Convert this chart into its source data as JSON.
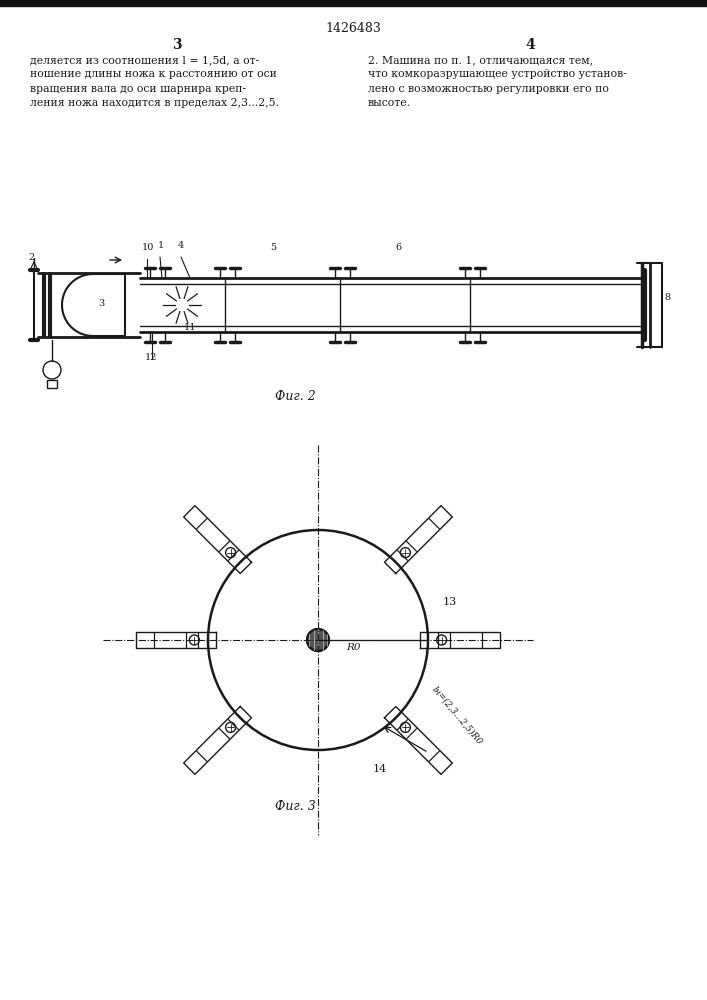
{
  "patent_number": "1426483",
  "page_numbers": [
    "3",
    "4"
  ],
  "text_left": "деляется из соотношения l = 1,5d, а от-\nношение длины ножа к расстоянию от оси\nвращения вала до оси шарнира креп-\nления ножа находится в пределах 2,3...2,5.",
  "text_right": "2. Машина по п. 1, отличающаяся тем,\nчто комкоразрушающее устройство установ-\nлено с возможностью регулировки его по\nвысоте.",
  "fig2_caption": "Фиг. 2",
  "fig3_caption": "Фиг. 3",
  "bg_color": "#ffffff",
  "line_color": "#1a1a1a",
  "line_width": 1.0
}
